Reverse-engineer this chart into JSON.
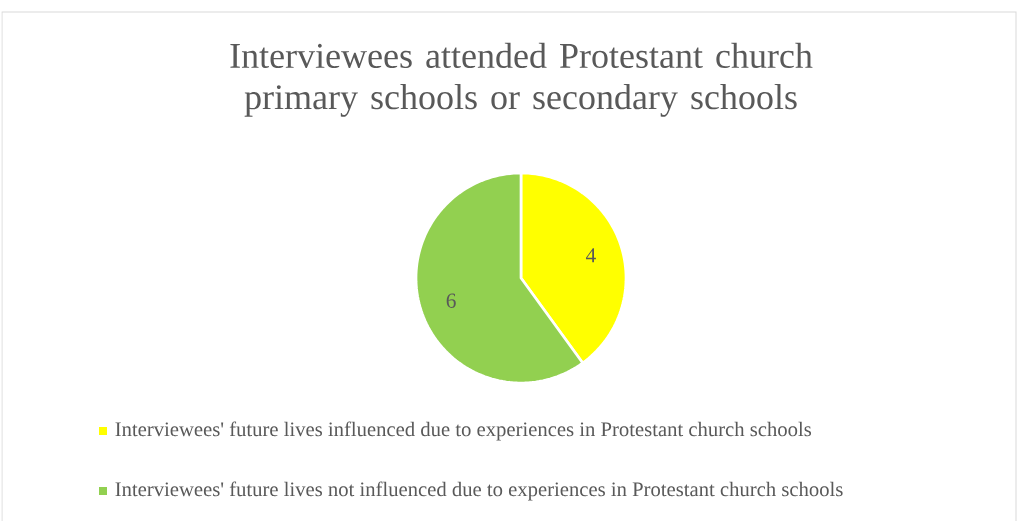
{
  "chart_data": {
    "type": "pie",
    "title": "Interviewees attended Protestant church primary schools or secondary schools",
    "categories": [
      "Interviewees' future lives influenced due to experiences in Protestant church schools",
      "Interviewees' future lives not influenced due to experiences in Protestant church schools"
    ],
    "values": [
      4,
      6
    ],
    "colors": [
      "#ffff00",
      "#92d050"
    ],
    "data_labels": true,
    "legend": "bottom"
  }
}
